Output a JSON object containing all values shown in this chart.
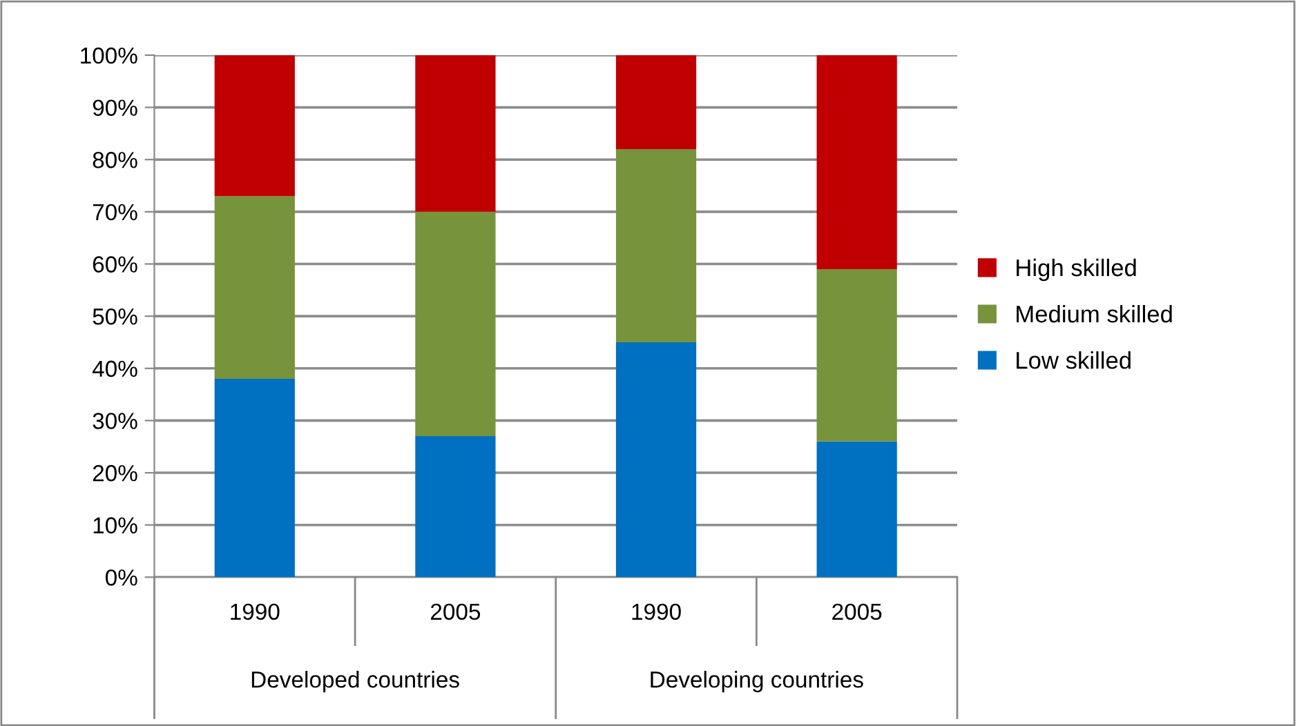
{
  "chart_data": {
    "type": "bar",
    "stacked": true,
    "categories": [
      "1990",
      "2005",
      "1990",
      "2005"
    ],
    "series": [
      {
        "name": "Low skilled",
        "color": "#0070c0",
        "values": [
          38,
          27,
          45,
          26
        ]
      },
      {
        "name": "Medium skilled",
        "color": "#77933c",
        "values": [
          35,
          43,
          37,
          33
        ]
      },
      {
        "name": "High skilled",
        "color": "#c00000",
        "values": [
          27,
          30,
          18,
          41
        ]
      }
    ],
    "annotations": [
      "Developed countries",
      "Developing countries"
    ],
    "ylim": [
      0,
      100
    ],
    "yticks": [
      {
        "value": 0,
        "label": "0%"
      },
      {
        "value": 10,
        "label": "10%"
      },
      {
        "value": 20,
        "label": "20%"
      },
      {
        "value": 30,
        "label": "30%"
      },
      {
        "value": 40,
        "label": "40%"
      },
      {
        "value": 50,
        "label": "50%"
      },
      {
        "value": 60,
        "label": "60%"
      },
      {
        "value": 70,
        "label": "70%"
      },
      {
        "value": 80,
        "label": "80%"
      },
      {
        "value": 90,
        "label": "90%"
      },
      {
        "value": 100,
        "label": "100%"
      }
    ],
    "grid": "y",
    "legend": "right"
  }
}
